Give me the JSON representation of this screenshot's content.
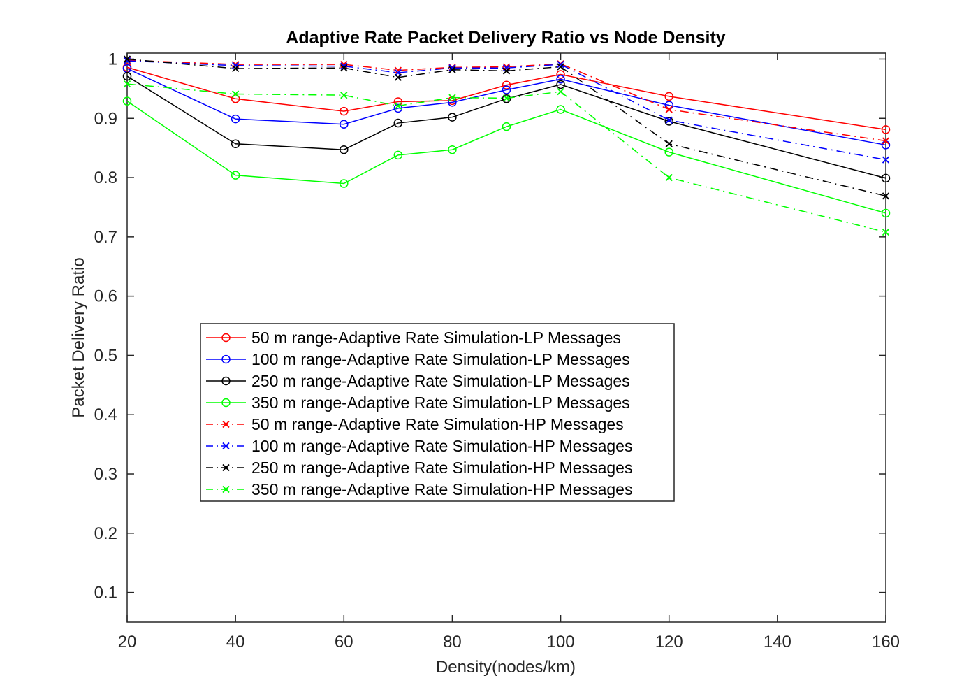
{
  "chart_data": {
    "type": "line",
    "title": "Adaptive Rate Packet Delivery Ratio vs Node Density",
    "xlabel": "Density(nodes/km)",
    "ylabel": "Packet Delivery Ratio",
    "xlim": [
      20,
      160
    ],
    "ylim": [
      0.05,
      1.01
    ],
    "xticks": [
      20,
      40,
      60,
      80,
      100,
      120,
      140,
      160
    ],
    "xtick_labels": [
      "20",
      "40",
      "60",
      "80",
      "100",
      "120",
      "140",
      "160"
    ],
    "yticks": [
      0.1,
      0.2,
      0.3,
      0.4,
      0.5,
      0.6,
      0.7,
      0.8,
      0.9,
      1.0
    ],
    "ytick_labels": [
      "0.1",
      "0.2",
      "0.3",
      "0.4",
      "0.5",
      "0.6",
      "0.7",
      "0.8",
      "0.9",
      "1"
    ],
    "grid": false,
    "legend_position": "center-left",
    "x": [
      20,
      40,
      60,
      70,
      80,
      90,
      100,
      120,
      160
    ],
    "series": [
      {
        "name": "50 m range-Adaptive Rate Simulation-LP Messages",
        "color": "#ff0000",
        "style": "solid",
        "marker": "circle",
        "values": [
          0.986,
          0.933,
          0.912,
          0.928,
          0.93,
          0.956,
          0.974,
          0.937,
          0.881
        ]
      },
      {
        "name": "100 m range-Adaptive Rate Simulation-LP Messages",
        "color": "#0000ff",
        "style": "solid",
        "marker": "circle",
        "values": [
          0.984,
          0.899,
          0.89,
          0.917,
          0.927,
          0.948,
          0.966,
          0.922,
          0.855
        ]
      },
      {
        "name": "250 m range-Adaptive Rate Simulation-LP Messages",
        "color": "#000000",
        "style": "solid",
        "marker": "circle",
        "values": [
          0.971,
          0.857,
          0.847,
          0.892,
          0.902,
          0.933,
          0.957,
          0.895,
          0.799
        ]
      },
      {
        "name": "350 m range-Adaptive Rate Simulation-LP Messages",
        "color": "#00ff00",
        "style": "solid",
        "marker": "circle",
        "values": [
          0.929,
          0.804,
          0.79,
          0.838,
          0.847,
          0.886,
          0.915,
          0.843,
          0.74
        ]
      },
      {
        "name": "50 m range-Adaptive Rate Simulation-HP Messages",
        "color": "#ff0000",
        "style": "dashdot",
        "marker": "x",
        "values": [
          0.998,
          0.991,
          0.991,
          0.981,
          0.986,
          0.987,
          0.992,
          0.915,
          0.862
        ]
      },
      {
        "name": "100 m range-Adaptive Rate Simulation-HP Messages",
        "color": "#0000ff",
        "style": "dashdot",
        "marker": "x",
        "values": [
          0.997,
          0.989,
          0.988,
          0.977,
          0.985,
          0.985,
          0.991,
          0.897,
          0.83
        ]
      },
      {
        "name": "250 m range-Adaptive Rate Simulation-HP Messages",
        "color": "#000000",
        "style": "dashdot",
        "marker": "x",
        "values": [
          1.0,
          0.984,
          0.985,
          0.969,
          0.982,
          0.98,
          0.987,
          0.857,
          0.769
        ]
      },
      {
        "name": "350 m range-Adaptive Rate Simulation-HP Messages",
        "color": "#00ff00",
        "style": "dashdot",
        "marker": "x",
        "values": [
          0.958,
          0.941,
          0.939,
          0.921,
          0.935,
          0.934,
          0.945,
          0.8,
          0.708
        ]
      }
    ]
  }
}
